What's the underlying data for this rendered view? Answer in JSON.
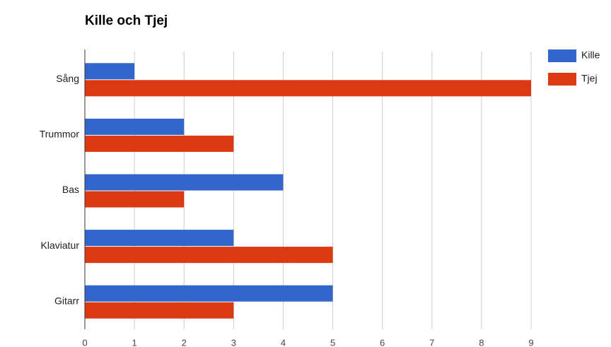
{
  "chart_data": {
    "type": "bar",
    "orientation": "horizontal",
    "title": "Kille och Tjej",
    "categories": [
      "Sång",
      "Trummor",
      "Bas",
      "Klaviatur",
      "Gitarr"
    ],
    "series": [
      {
        "name": "Kille",
        "color": "#3366cc",
        "values": [
          1,
          2,
          4,
          3,
          5
        ]
      },
      {
        "name": "Tjej",
        "color": "#dc3912",
        "values": [
          9,
          3,
          2,
          5,
          3
        ]
      }
    ],
    "xlim": [
      0,
      9
    ],
    "xticks": [
      0,
      1,
      2,
      3,
      4,
      5,
      6,
      7,
      8,
      9
    ],
    "grid": true,
    "legend": "right"
  }
}
